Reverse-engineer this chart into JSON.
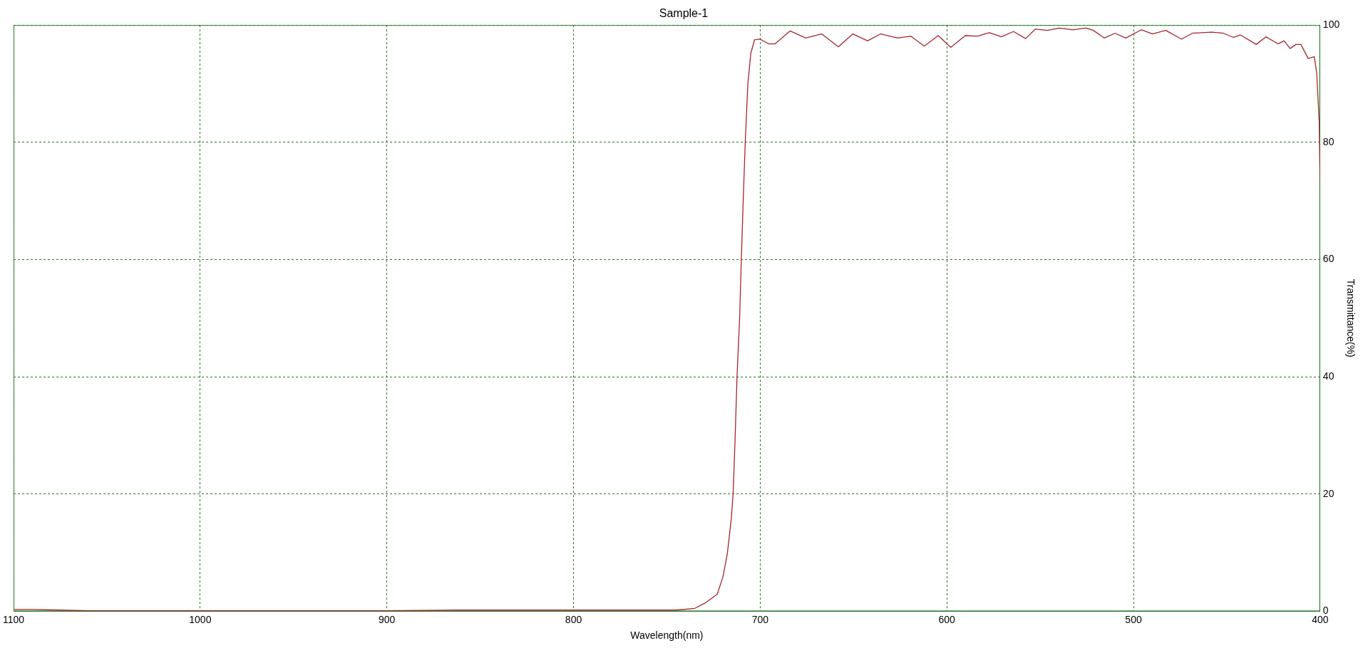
{
  "chart_data": {
    "type": "line",
    "title": "Sample-1",
    "xlabel": "Wavelength(nm)",
    "ylabel": "Transmittance(%)",
    "x": [
      1100,
      1090,
      1075,
      1060,
      1000,
      900,
      860,
      800,
      760,
      745,
      735,
      729,
      723,
      720,
      717.6,
      715.5,
      714.5,
      713.5,
      712.4,
      711,
      710.1,
      709.1,
      708,
      706.6,
      705,
      703,
      700,
      695.5,
      692,
      684,
      675.6,
      667.1,
      658.1,
      650.3,
      642.5,
      635.4,
      626.4,
      619.3,
      612.1,
      604.6,
      597.9,
      590.1,
      583.7,
      577.2,
      570.7,
      564.3,
      557.8,
      552.6,
      546.1,
      539.7,
      532.5,
      525.4,
      521.5,
      515.7,
      509.9,
      504.1,
      495.7,
      489.8,
      482.7,
      474.3,
      468.5,
      458.1,
      451.7,
      446.5,
      442.6,
      434.2,
      429,
      422.6,
      419.3,
      416.1,
      412.9,
      410.3,
      406.4,
      403.1,
      401.8,
      400.5,
      400
    ],
    "values": [
      0.3,
      0.3,
      0.2,
      0.1,
      0.1,
      0.1,
      0.2,
      0.2,
      0.2,
      0.2,
      0.5,
      1.5,
      2.9,
      5.8,
      9.8,
      15.7,
      20,
      28.8,
      40,
      50,
      60,
      70,
      80,
      90,
      95.2,
      97.5,
      97.6,
      96.8,
      96.8,
      99,
      97.8,
      98.5,
      96.3,
      98.5,
      97.3,
      98.5,
      97.8,
      98.1,
      96.4,
      98.2,
      96.2,
      98.2,
      98.1,
      98.7,
      98,
      98.9,
      97.7,
      99.3,
      99.1,
      99.5,
      99.2,
      99.5,
      99.1,
      97.8,
      98.6,
      97.8,
      99.2,
      98.5,
      99.1,
      97.6,
      98.6,
      98.8,
      98.6,
      97.9,
      98.3,
      96.7,
      98,
      96.8,
      97.3,
      96,
      96.7,
      96.7,
      94.3,
      94.6,
      91.7,
      83.6,
      74
    ],
    "color": "#a3262c",
    "xlim": [
      1100,
      400
    ],
    "xticks": [
      1100,
      1000,
      900,
      800,
      700,
      600,
      500,
      400
    ],
    "ylim": [
      0,
      100
    ],
    "yticks": [
      0,
      20,
      40,
      60,
      80,
      100
    ],
    "grid": true
  }
}
